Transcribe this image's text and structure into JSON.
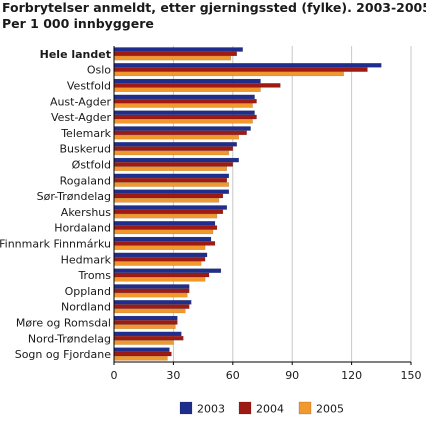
{
  "title_line1": "Forbrytelser anmeldt, etter gjerningssted (fylke). 2003-2005.",
  "title_line2": "Per 1 000 innbyggere",
  "colors": {
    "2003": "#1f2e8c",
    "2004": "#9e1a12",
    "2005": "#f2992e",
    "grid": "#c8c8c8"
  },
  "chart_data": {
    "type": "bar",
    "orientation": "horizontal",
    "title": "Forbrytelser anmeldt, etter gjerningssted (fylke). 2003-2005. Per 1 000 innbyggere",
    "categories": [
      "Hele landet",
      "Oslo",
      "Vestfold",
      "Aust-Agder",
      "Vest-Agder",
      "Telemark",
      "Buskerud",
      "Østfold",
      "Rogaland",
      "Sør-Trøndelag",
      "Akershus",
      "Hordaland",
      "Finnmark Finnmárku",
      "Hedmark",
      "Troms",
      "Oppland",
      "Nordland",
      "Møre og Romsdal",
      "Nord-Trøndelag",
      "Sogn og Fjordane"
    ],
    "bold_categories": [
      "Hele landet"
    ],
    "series": [
      {
        "name": "2003",
        "values": [
          65,
          135,
          74,
          71,
          71,
          69,
          62,
          63,
          58,
          58,
          57,
          51,
          49,
          47,
          54,
          38,
          39,
          32,
          34,
          28
        ]
      },
      {
        "name": "2004",
        "values": [
          62,
          128,
          84,
          72,
          72,
          67,
          60,
          60,
          57,
          55,
          55,
          52,
          51,
          46,
          48,
          38,
          38,
          32,
          35,
          29
        ]
      },
      {
        "name": "2005",
        "values": [
          59,
          116,
          74,
          70,
          70,
          63,
          58,
          57,
          58,
          53,
          52,
          50,
          46,
          44,
          46,
          37,
          36,
          31,
          30,
          27
        ]
      }
    ],
    "xlim": [
      0,
      150
    ],
    "xticks": [
      0,
      30,
      60,
      90,
      120,
      150
    ],
    "grid": true,
    "legend_position": "bottom"
  }
}
